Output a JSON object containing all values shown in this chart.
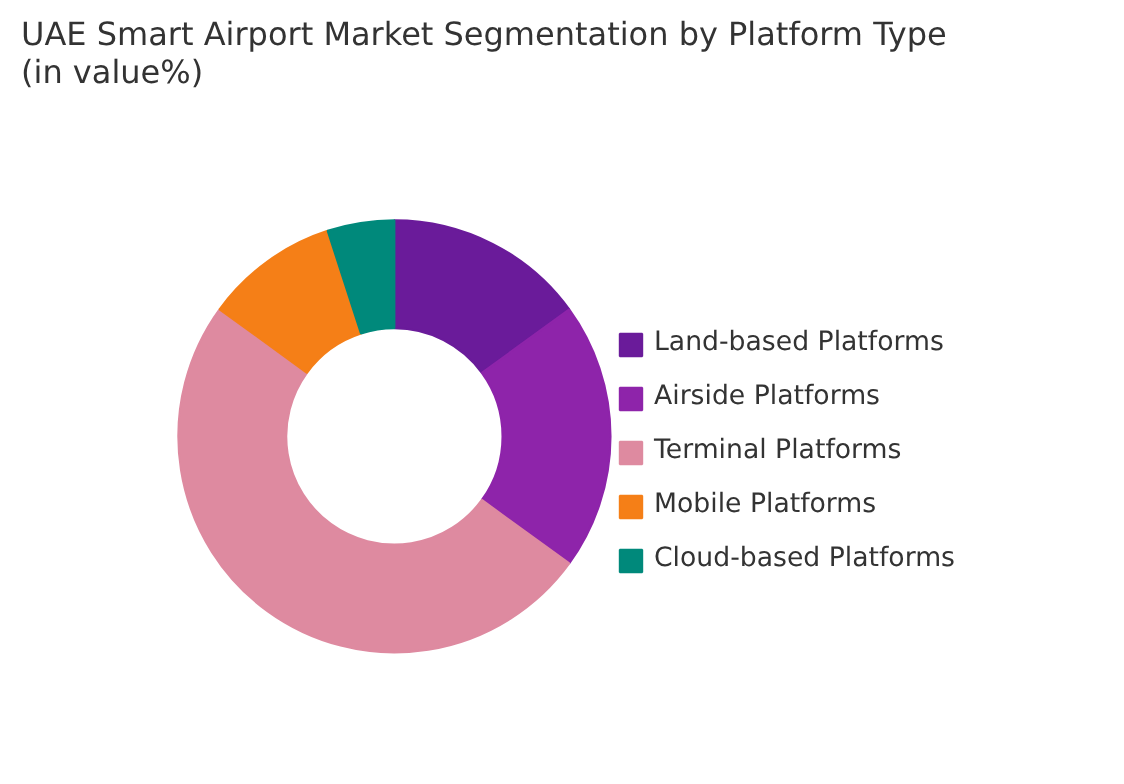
{
  "chart_data": {
    "type": "donut",
    "title": "UAE Smart Airport Market Segmentation by Platform Type (in value%)",
    "categories": [
      "Land-based Platforms",
      "Airside Platforms",
      "Terminal Platforms",
      "Mobile Platforms",
      "Cloud-based Platforms"
    ],
    "values": [
      15,
      20,
      50,
      10,
      5
    ],
    "colors": [
      "#6a1b9a",
      "#8e24aa",
      "#de8aa0",
      "#f57f17",
      "#00897b"
    ],
    "legend": "right"
  }
}
